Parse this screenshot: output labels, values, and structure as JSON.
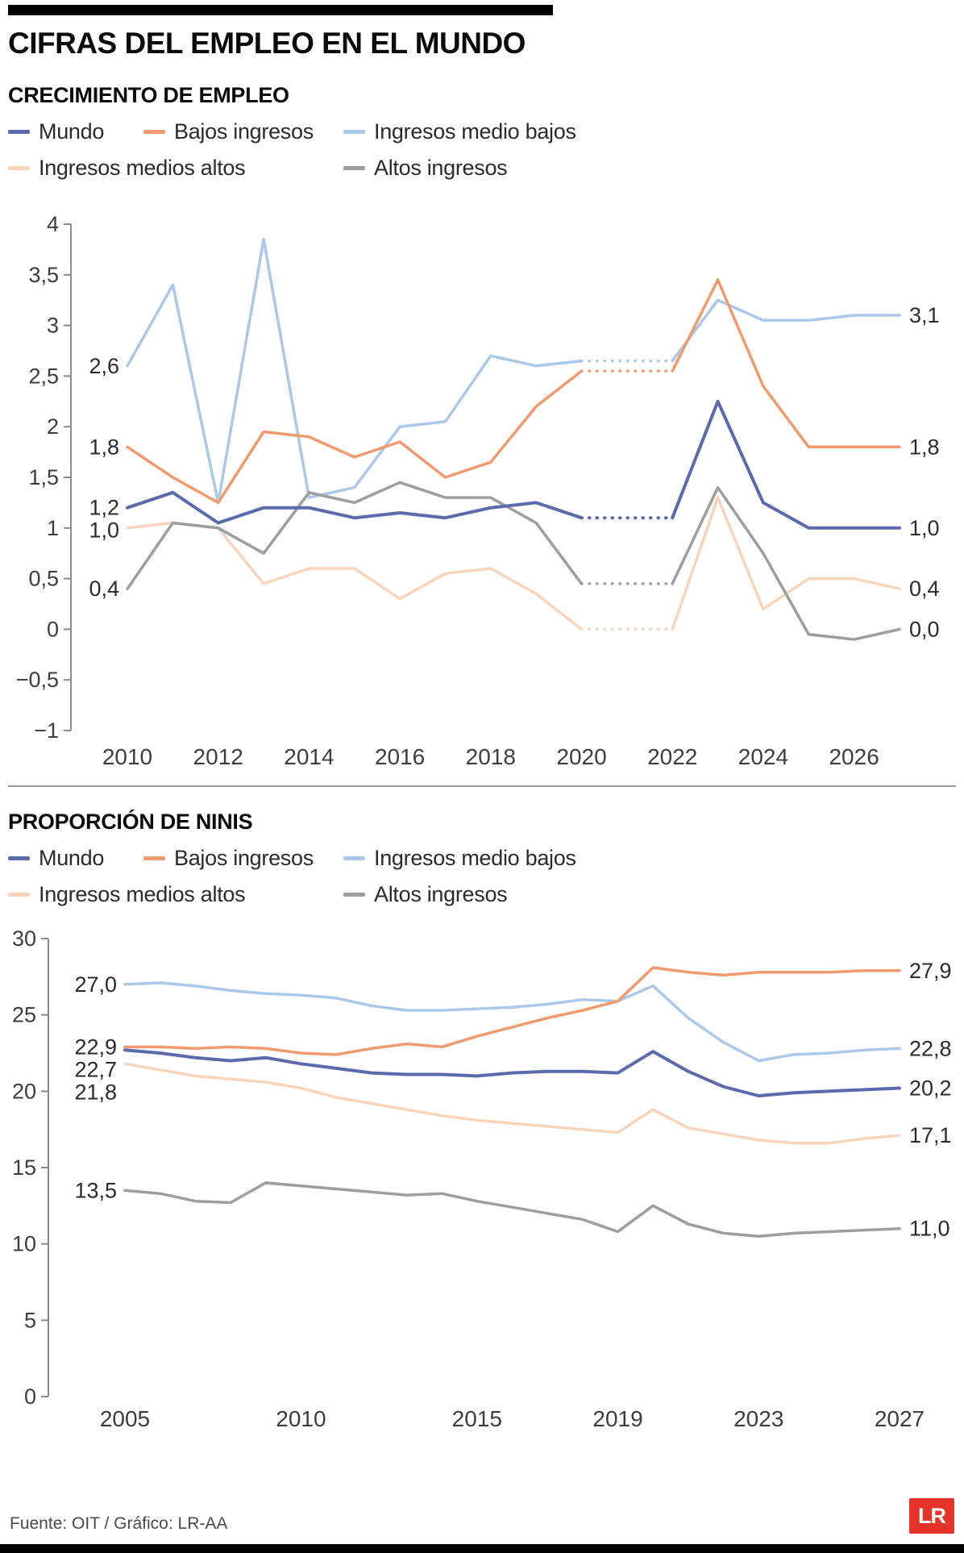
{
  "header": {
    "title": "CIFRAS DEL EMPLEO EN EL MUNDO"
  },
  "footer": {
    "source": "Fuente: OIT / Gráfico: LR-AA",
    "logo_text": "LR"
  },
  "chart_data": [
    {
      "type": "line",
      "title": "CRECIMIENTO DE EMPLEO",
      "x": [
        2010,
        2011,
        2012,
        2013,
        2014,
        2015,
        2016,
        2017,
        2018,
        2019,
        2020,
        2021,
        2022,
        2023,
        2024,
        2025,
        2026,
        2027
      ],
      "x_ticks": [
        2010,
        2012,
        2014,
        2016,
        2018,
        2020,
        2022,
        2024,
        2026
      ],
      "ylim": [
        -1,
        4
      ],
      "y_tick_values": [
        4,
        3.5,
        3,
        2.5,
        2,
        1.5,
        1,
        0.5,
        0,
        -0.5,
        -1
      ],
      "y_tick_labels": [
        "4",
        "3,5",
        "3",
        "2,5",
        "2",
        "1,5",
        "1",
        "0,5",
        "0",
        "−0,5",
        "−1"
      ],
      "grid": "off",
      "legend_position": "top",
      "series": [
        {
          "name": "Mundo",
          "color": "#5b69ad",
          "values": [
            1.2,
            1.35,
            1.05,
            1.2,
            1.2,
            1.1,
            1.15,
            1.1,
            1.2,
            1.25,
            1.1,
            1.1,
            1.1,
            2.25,
            1.25,
            1.0,
            1.0,
            1.0
          ],
          "dash_between": [
            2020,
            2022
          ],
          "start_label": "1,2",
          "end_label": "1,0"
        },
        {
          "name": "Bajos ingresos",
          "color": "#f09a6d",
          "values": [
            1.8,
            1.5,
            1.25,
            1.95,
            1.9,
            1.7,
            1.85,
            1.5,
            1.65,
            2.2,
            2.55,
            2.55,
            2.55,
            3.45,
            2.4,
            1.8,
            1.8,
            1.8
          ],
          "dash_between": [
            2020,
            2022
          ],
          "start_label": "1,8",
          "end_label": "1,8"
        },
        {
          "name": "Ingresos medio bajos",
          "color": "#aac8e9",
          "values": [
            2.6,
            3.4,
            1.25,
            3.85,
            1.3,
            1.4,
            2.0,
            2.05,
            2.7,
            2.6,
            2.65,
            2.65,
            2.65,
            3.25,
            3.05,
            3.05,
            3.1,
            3.1
          ],
          "dash_between": [
            2020,
            2022
          ],
          "start_label": "2,6",
          "end_label": "3,1"
        },
        {
          "name": "Ingresos medios altos",
          "color": "#f8d4ba",
          "values": [
            1.0,
            1.05,
            1.0,
            0.45,
            0.6,
            0.6,
            0.3,
            0.55,
            0.6,
            0.35,
            0.0,
            0.0,
            0.0,
            1.3,
            0.2,
            0.5,
            0.5,
            0.4
          ],
          "dash_between": [
            2020,
            2022
          ],
          "start_label": "1,0",
          "end_label": "0,4"
        },
        {
          "name": "Altos ingresos",
          "color": "#9c9e9f",
          "values": [
            0.4,
            1.05,
            1.0,
            0.75,
            1.35,
            1.25,
            1.45,
            1.3,
            1.3,
            1.05,
            0.45,
            0.45,
            0.45,
            1.4,
            0.75,
            -0.05,
            -0.1,
            0.0
          ],
          "dash_between": [
            2020,
            2022
          ],
          "start_label": "0,4",
          "end_label": "0,0"
        }
      ]
    },
    {
      "type": "line",
      "title": "PROPORCIÓN DE NINIS",
      "x": [
        2005,
        2006,
        2007,
        2008,
        2009,
        2010,
        2011,
        2012,
        2013,
        2014,
        2015,
        2016,
        2017,
        2018,
        2019,
        2020,
        2021,
        2022,
        2023,
        2024,
        2025,
        2026,
        2027
      ],
      "x_ticks": [
        2005,
        2010,
        2015,
        2019,
        2023,
        2027
      ],
      "ylim": [
        0,
        30
      ],
      "y_tick_values": [
        30,
        25,
        20,
        15,
        10,
        5,
        0
      ],
      "y_tick_labels": [
        "30",
        "25",
        "20",
        "15",
        "10",
        "5",
        "0"
      ],
      "grid": "off",
      "legend_position": "top",
      "series": [
        {
          "name": "Mundo",
          "color": "#5b69ad",
          "values": [
            22.7,
            22.5,
            22.2,
            22.0,
            22.2,
            21.8,
            21.5,
            21.2,
            21.1,
            21.1,
            21.0,
            21.2,
            21.3,
            21.3,
            21.2,
            22.6,
            21.3,
            20.3,
            19.7,
            19.9,
            20.0,
            20.1,
            20.2
          ],
          "start_label": "22,7",
          "end_label": "20,2"
        },
        {
          "name": "Bajos ingresos",
          "color": "#f09a6d",
          "values": [
            22.9,
            22.9,
            22.8,
            22.9,
            22.8,
            22.5,
            22.4,
            22.8,
            23.1,
            22.9,
            23.6,
            24.2,
            24.8,
            25.3,
            25.9,
            28.1,
            27.8,
            27.6,
            27.8,
            27.8,
            27.8,
            27.9,
            27.9
          ],
          "start_label": "22,9",
          "end_label": "27,9"
        },
        {
          "name": "Ingresos medio bajos",
          "color": "#aac8e9",
          "values": [
            27.0,
            27.1,
            26.9,
            26.6,
            26.4,
            26.3,
            26.1,
            25.6,
            25.3,
            25.3,
            25.4,
            25.5,
            25.7,
            26.0,
            25.9,
            26.9,
            24.8,
            23.2,
            22.0,
            22.4,
            22.5,
            22.7,
            22.8
          ],
          "start_label": "27,0",
          "end_label": "22,8"
        },
        {
          "name": "Ingresos medios altos",
          "color": "#f8d4ba",
          "values": [
            21.8,
            21.4,
            21.0,
            20.8,
            20.6,
            20.2,
            19.6,
            19.2,
            18.8,
            18.4,
            18.1,
            17.9,
            17.7,
            17.5,
            17.3,
            18.8,
            17.6,
            17.2,
            16.8,
            16.6,
            16.6,
            16.9,
            17.1
          ],
          "start_label": "21,8",
          "end_label": "17,1"
        },
        {
          "name": "Altos ingresos",
          "color": "#9c9e9f",
          "values": [
            13.5,
            13.3,
            12.8,
            12.7,
            14.0,
            13.8,
            13.6,
            13.4,
            13.2,
            13.3,
            12.8,
            12.4,
            12.0,
            11.6,
            10.8,
            12.5,
            11.3,
            10.7,
            10.5,
            10.7,
            10.8,
            10.9,
            11.0
          ],
          "start_label": "13,5",
          "end_label": "11,0"
        }
      ]
    }
  ]
}
